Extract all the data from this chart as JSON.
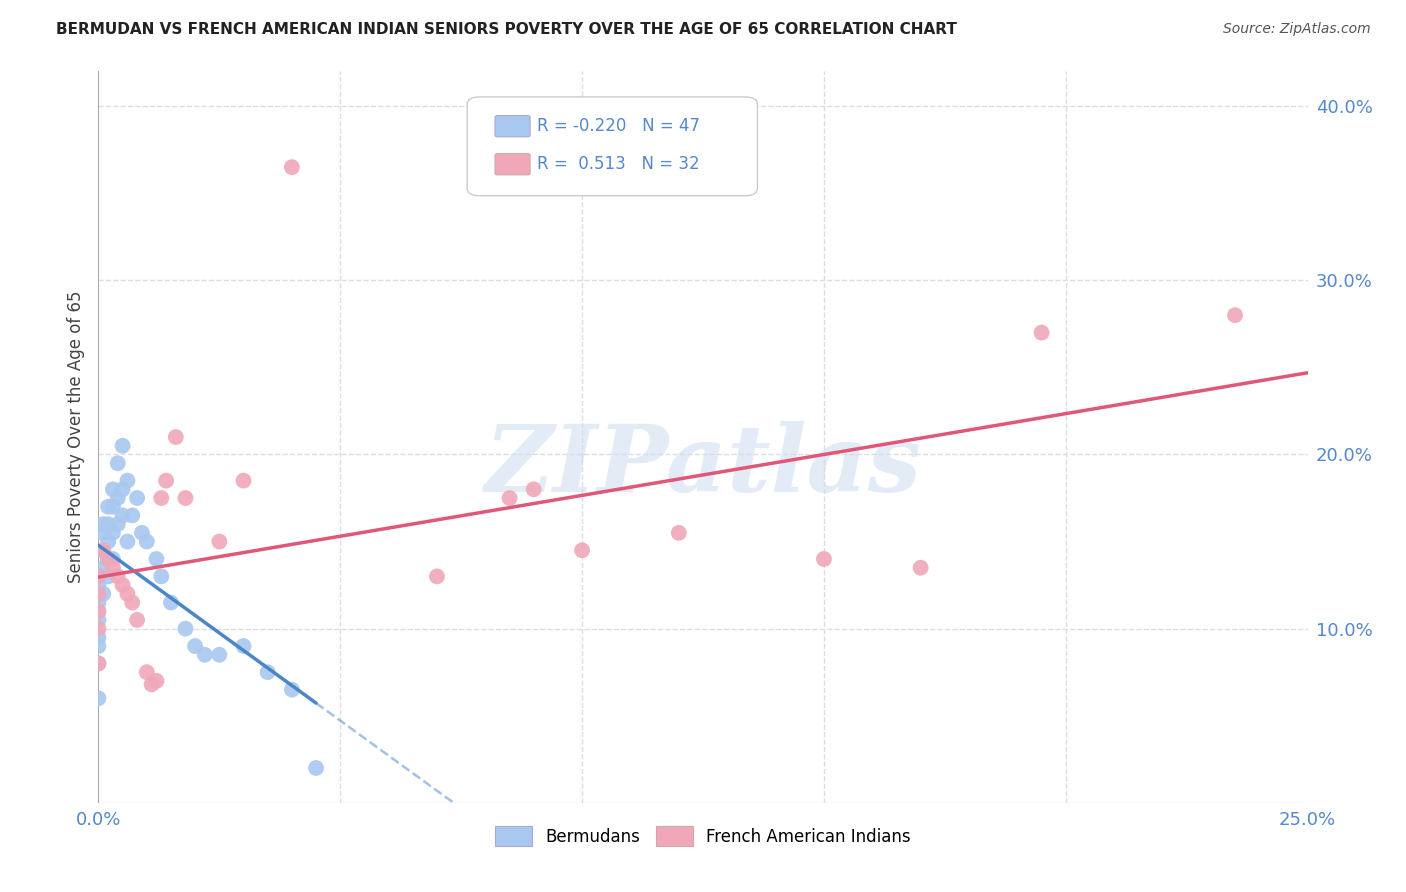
{
  "title": "BERMUDAN VS FRENCH AMERICAN INDIAN SENIORS POVERTY OVER THE AGE OF 65 CORRELATION CHART",
  "source": "Source: ZipAtlas.com",
  "ylabel": "Seniors Poverty Over the Age of 65",
  "xlim": [
    0.0,
    0.25
  ],
  "ylim": [
    0.0,
    0.42
  ],
  "xticks": [
    0.0,
    0.05,
    0.1,
    0.15,
    0.2,
    0.25
  ],
  "yticks": [
    0.0,
    0.1,
    0.2,
    0.3,
    0.4
  ],
  "bermudan_R": -0.22,
  "bermudan_N": 47,
  "french_R": 0.513,
  "french_N": 32,
  "bermudan_color": "#a8c8f0",
  "french_color": "#f0a8b8",
  "bermudan_line_color": "#4a86c8",
  "french_line_color": "#e05878",
  "watermark_text": "ZIPatlas",
  "background_color": "#ffffff",
  "grid_color": "#dddddd",
  "bermudan_x": [
    0.0,
    0.0,
    0.0,
    0.0,
    0.0,
    0.0,
    0.0,
    0.0,
    0.0,
    0.0,
    0.001,
    0.001,
    0.001,
    0.001,
    0.001,
    0.002,
    0.002,
    0.002,
    0.002,
    0.002,
    0.003,
    0.003,
    0.003,
    0.003,
    0.004,
    0.004,
    0.004,
    0.005,
    0.005,
    0.005,
    0.006,
    0.006,
    0.007,
    0.008,
    0.009,
    0.01,
    0.012,
    0.013,
    0.015,
    0.018,
    0.02,
    0.022,
    0.025,
    0.03,
    0.035,
    0.04,
    0.045
  ],
  "bermudan_y": [
    0.13,
    0.125,
    0.12,
    0.115,
    0.11,
    0.105,
    0.095,
    0.09,
    0.08,
    0.06,
    0.16,
    0.155,
    0.145,
    0.135,
    0.12,
    0.17,
    0.16,
    0.15,
    0.14,
    0.13,
    0.18,
    0.17,
    0.155,
    0.14,
    0.195,
    0.175,
    0.16,
    0.205,
    0.18,
    0.165,
    0.185,
    0.15,
    0.165,
    0.175,
    0.155,
    0.15,
    0.14,
    0.13,
    0.115,
    0.1,
    0.09,
    0.085,
    0.085,
    0.09,
    0.075,
    0.065,
    0.02
  ],
  "french_x": [
    0.0,
    0.0,
    0.0,
    0.0,
    0.0,
    0.001,
    0.002,
    0.003,
    0.004,
    0.005,
    0.006,
    0.007,
    0.008,
    0.01,
    0.011,
    0.012,
    0.013,
    0.014,
    0.016,
    0.018,
    0.025,
    0.03,
    0.04,
    0.07,
    0.085,
    0.09,
    0.1,
    0.12,
    0.15,
    0.17,
    0.195,
    0.235
  ],
  "french_y": [
    0.13,
    0.12,
    0.11,
    0.1,
    0.08,
    0.145,
    0.14,
    0.135,
    0.13,
    0.125,
    0.12,
    0.115,
    0.105,
    0.075,
    0.068,
    0.07,
    0.175,
    0.185,
    0.21,
    0.175,
    0.15,
    0.185,
    0.365,
    0.13,
    0.175,
    0.18,
    0.145,
    0.155,
    0.14,
    0.135,
    0.27,
    0.28
  ]
}
